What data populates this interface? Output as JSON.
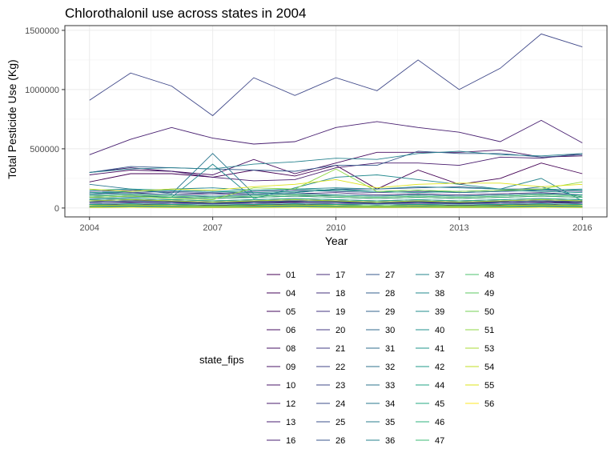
{
  "chart_data": {
    "type": "line",
    "title": "Chlorothalonil use across states in 2004",
    "xlabel": "Year",
    "ylabel": "Total Pesticide Use (Kg)",
    "xlim": [
      2004,
      2016
    ],
    "ylim": [
      0,
      1500000
    ],
    "x_ticks": [
      2004,
      2007,
      2010,
      2013,
      2016
    ],
    "y_ticks": [
      0,
      500000,
      1000000,
      1500000
    ],
    "y_tick_labels": [
      "0",
      "500000",
      "1000000",
      "1500000"
    ],
    "grid": true,
    "legend_title": "state_fips",
    "legend_position": "bottom",
    "x": [
      2004,
      2005,
      2006,
      2007,
      2008,
      2009,
      2010,
      2011,
      2012,
      2013,
      2014,
      2015,
      2016
    ],
    "series": [
      {
        "name": "01",
        "color": "#440154",
        "values": [
          220000,
          290000,
          290000,
          260000,
          320000,
          270000,
          360000,
          160000,
          320000,
          200000,
          250000,
          380000,
          290000
        ]
      },
      {
        "name": "04",
        "color": "#450559",
        "values": [
          60000,
          70000,
          50000,
          40000,
          50000,
          55000,
          60000,
          40000,
          50000,
          45000,
          50000,
          60000,
          40000
        ]
      },
      {
        "name": "05",
        "color": "#46085c",
        "values": [
          30000,
          25000,
          30000,
          20000,
          25000,
          30000,
          30000,
          25000,
          30000,
          20000,
          25000,
          30000,
          20000
        ]
      },
      {
        "name": "06",
        "color": "#470d60",
        "values": [
          280000,
          320000,
          310000,
          280000,
          410000,
          290000,
          380000,
          470000,
          470000,
          470000,
          490000,
          430000,
          440000
        ]
      },
      {
        "name": "08",
        "color": "#471063",
        "values": [
          5000,
          6000,
          5000,
          4000,
          5000,
          6000,
          5000,
          4000,
          5000,
          4000,
          5000,
          6000,
          5000
        ]
      },
      {
        "name": "09",
        "color": "#481467",
        "values": [
          90000,
          100000,
          90000,
          80000,
          90000,
          100000,
          90000,
          80000,
          90000,
          80000,
          90000,
          100000,
          90000
        ]
      },
      {
        "name": "10",
        "color": "#481769",
        "values": [
          50000,
          60000,
          55000,
          50000,
          55000,
          60000,
          55000,
          50000,
          55000,
          50000,
          55000,
          60000,
          55000
        ]
      },
      {
        "name": "12",
        "color": "#481b6d",
        "values": [
          300000,
          340000,
          310000,
          260000,
          230000,
          240000,
          340000,
          380000,
          380000,
          360000,
          430000,
          420000,
          460000
        ]
      },
      {
        "name": "13",
        "color": "#481f70",
        "values": [
          450000,
          580000,
          680000,
          590000,
          540000,
          560000,
          680000,
          730000,
          680000,
          640000,
          560000,
          740000,
          550000
        ]
      },
      {
        "name": "16",
        "color": "#482173",
        "values": [
          60000,
          50000,
          40000,
          50000,
          40000,
          50000,
          40000,
          50000,
          40000,
          50000,
          40000,
          50000,
          40000
        ]
      },
      {
        "name": "17",
        "color": "#472c7a",
        "values": [
          120000,
          130000,
          110000,
          120000,
          110000,
          120000,
          130000,
          110000,
          120000,
          110000,
          120000,
          130000,
          110000
        ]
      },
      {
        "name": "18",
        "color": "#46307e",
        "values": [
          70000,
          80000,
          70000,
          60000,
          70000,
          80000,
          70000,
          60000,
          70000,
          60000,
          70000,
          80000,
          70000
        ]
      },
      {
        "name": "19",
        "color": "#453581",
        "values": [
          20000,
          25000,
          20000,
          15000,
          20000,
          25000,
          20000,
          15000,
          20000,
          15000,
          20000,
          25000,
          20000
        ]
      },
      {
        "name": "20",
        "color": "#443a83",
        "values": [
          10000,
          12000,
          10000,
          8000,
          10000,
          12000,
          10000,
          8000,
          10000,
          8000,
          10000,
          12000,
          10000
        ]
      },
      {
        "name": "21",
        "color": "#433e85",
        "values": [
          40000,
          45000,
          40000,
          35000,
          40000,
          45000,
          40000,
          35000,
          40000,
          35000,
          40000,
          45000,
          40000
        ]
      },
      {
        "name": "22",
        "color": "#414487",
        "values": [
          60000,
          70000,
          60000,
          50000,
          60000,
          70000,
          60000,
          50000,
          60000,
          50000,
          60000,
          70000,
          60000
        ]
      },
      {
        "name": "23",
        "color": "#3f4889",
        "values": [
          910000,
          1140000,
          1030000,
          780000,
          1100000,
          950000,
          1100000,
          990000,
          1250000,
          1000000,
          1180000,
          1470000,
          1360000
        ]
      },
      {
        "name": "24",
        "color": "#3e4c8a",
        "values": [
          140000,
          150000,
          130000,
          120000,
          140000,
          150000,
          140000,
          130000,
          140000,
          130000,
          140000,
          150000,
          140000
        ]
      },
      {
        "name": "25",
        "color": "#3b528b",
        "values": [
          100000,
          110000,
          90000,
          100000,
          90000,
          100000,
          110000,
          100000,
          110000,
          100000,
          110000,
          120000,
          110000
        ]
      },
      {
        "name": "26",
        "color": "#39568c",
        "values": [
          120000,
          130000,
          140000,
          130000,
          120000,
          130000,
          160000,
          160000,
          170000,
          180000,
          160000,
          160000,
          150000
        ]
      },
      {
        "name": "27",
        "color": "#375a8c",
        "values": [
          300000,
          350000,
          340000,
          330000,
          320000,
          310000,
          360000,
          360000,
          480000,
          460000,
          460000,
          430000,
          450000
        ]
      },
      {
        "name": "28",
        "color": "#355f8d",
        "values": [
          50000,
          60000,
          50000,
          40000,
          50000,
          60000,
          50000,
          40000,
          50000,
          40000,
          50000,
          60000,
          50000
        ]
      },
      {
        "name": "29",
        "color": "#33638d",
        "values": [
          30000,
          35000,
          30000,
          25000,
          30000,
          35000,
          30000,
          25000,
          30000,
          25000,
          30000,
          35000,
          30000
        ]
      },
      {
        "name": "30",
        "color": "#31688e",
        "values": [
          15000,
          18000,
          15000,
          12000,
          15000,
          18000,
          15000,
          12000,
          15000,
          12000,
          15000,
          18000,
          15000
        ]
      },
      {
        "name": "31",
        "color": "#2f6c8e",
        "values": [
          20000,
          25000,
          20000,
          15000,
          20000,
          25000,
          20000,
          15000,
          20000,
          15000,
          20000,
          25000,
          20000
        ]
      },
      {
        "name": "32",
        "color": "#2d708e",
        "values": [
          5000,
          6000,
          5000,
          4000,
          5000,
          6000,
          5000,
          4000,
          5000,
          4000,
          5000,
          6000,
          5000
        ]
      },
      {
        "name": "33",
        "color": "#2c738e",
        "values": [
          30000,
          35000,
          30000,
          25000,
          30000,
          35000,
          30000,
          25000,
          30000,
          25000,
          30000,
          35000,
          30000
        ]
      },
      {
        "name": "34",
        "color": "#2a778e",
        "values": [
          200000,
          160000,
          120000,
          460000,
          120000,
          130000,
          160000,
          140000,
          150000,
          130000,
          140000,
          180000,
          90000
        ]
      },
      {
        "name": "35",
        "color": "#287c8e",
        "values": [
          10000,
          12000,
          10000,
          8000,
          10000,
          12000,
          10000,
          8000,
          10000,
          8000,
          10000,
          12000,
          10000
        ]
      },
      {
        "name": "36",
        "color": "#26828e",
        "values": [
          300000,
          330000,
          340000,
          330000,
          370000,
          390000,
          420000,
          410000,
          460000,
          480000,
          450000,
          440000,
          460000
        ]
      },
      {
        "name": "37",
        "color": "#25858e",
        "values": [
          120000,
          140000,
          160000,
          170000,
          150000,
          160000,
          170000,
          160000,
          180000,
          170000,
          160000,
          250000,
          60000
        ]
      },
      {
        "name": "38",
        "color": "#23898e",
        "values": [
          80000,
          90000,
          90000,
          370000,
          80000,
          170000,
          260000,
          280000,
          240000,
          200000,
          160000,
          150000,
          160000
        ]
      },
      {
        "name": "39",
        "color": "#218e8d",
        "values": [
          110000,
          120000,
          110000,
          100000,
          110000,
          120000,
          110000,
          100000,
          110000,
          100000,
          110000,
          120000,
          110000
        ]
      },
      {
        "name": "40",
        "color": "#20928c",
        "values": [
          20000,
          25000,
          20000,
          15000,
          20000,
          25000,
          20000,
          15000,
          20000,
          15000,
          20000,
          25000,
          20000
        ]
      },
      {
        "name": "41",
        "color": "#1f968b",
        "values": [
          130000,
          140000,
          150000,
          140000,
          130000,
          140000,
          150000,
          140000,
          130000,
          140000,
          150000,
          140000,
          130000
        ]
      },
      {
        "name": "42",
        "color": "#1f9a8a",
        "values": [
          150000,
          160000,
          150000,
          140000,
          150000,
          160000,
          150000,
          140000,
          150000,
          140000,
          150000,
          160000,
          150000
        ]
      },
      {
        "name": "44",
        "color": "#20a386",
        "values": [
          30000,
          35000,
          30000,
          25000,
          30000,
          35000,
          30000,
          25000,
          30000,
          25000,
          30000,
          35000,
          30000
        ]
      },
      {
        "name": "45",
        "color": "#24aa83",
        "values": [
          70000,
          80000,
          70000,
          60000,
          70000,
          80000,
          70000,
          60000,
          70000,
          60000,
          70000,
          80000,
          70000
        ]
      },
      {
        "name": "46",
        "color": "#2db27d",
        "values": [
          10000,
          12000,
          10000,
          8000,
          10000,
          12000,
          10000,
          8000,
          10000,
          8000,
          10000,
          12000,
          10000
        ]
      },
      {
        "name": "47",
        "color": "#3bbb75",
        "values": [
          90000,
          100000,
          90000,
          80000,
          90000,
          100000,
          90000,
          80000,
          90000,
          80000,
          90000,
          100000,
          90000
        ]
      },
      {
        "name": "48",
        "color": "#4cc26c",
        "values": [
          100000,
          110000,
          100000,
          90000,
          100000,
          110000,
          100000,
          90000,
          100000,
          90000,
          100000,
          110000,
          100000
        ]
      },
      {
        "name": "49",
        "color": "#5ec962",
        "values": [
          5000,
          6000,
          5000,
          4000,
          5000,
          6000,
          5000,
          4000,
          5000,
          4000,
          5000,
          6000,
          5000
        ]
      },
      {
        "name": "50",
        "color": "#75d054",
        "values": [
          20000,
          25000,
          20000,
          15000,
          20000,
          25000,
          20000,
          15000,
          20000,
          15000,
          20000,
          25000,
          20000
        ]
      },
      {
        "name": "51",
        "color": "#8fd744",
        "values": [
          90000,
          100000,
          80000,
          70000,
          170000,
          160000,
          330000,
          140000,
          150000,
          140000,
          150000,
          160000,
          220000
        ]
      },
      {
        "name": "53",
        "color": "#a8db34",
        "values": [
          60000,
          70000,
          60000,
          50000,
          60000,
          70000,
          60000,
          50000,
          60000,
          50000,
          60000,
          70000,
          60000
        ]
      },
      {
        "name": "54",
        "color": "#c2df23",
        "values": [
          20000,
          25000,
          20000,
          15000,
          20000,
          25000,
          20000,
          15000,
          20000,
          15000,
          20000,
          25000,
          20000
        ]
      },
      {
        "name": "55",
        "color": "#dde318",
        "values": [
          160000,
          140000,
          160000,
          150000,
          180000,
          200000,
          240000,
          170000,
          200000,
          210000,
          210000,
          180000,
          200000
        ]
      },
      {
        "name": "56",
        "color": "#fde725",
        "values": [
          5000,
          6000,
          5000,
          4000,
          5000,
          6000,
          5000,
          4000,
          5000,
          4000,
          5000,
          6000,
          5000
        ]
      }
    ]
  }
}
